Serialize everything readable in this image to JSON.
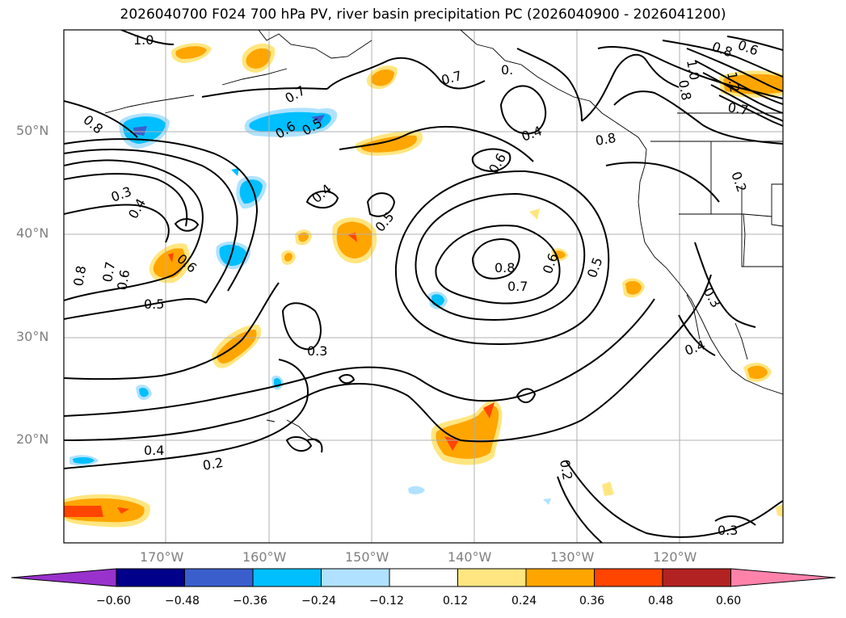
{
  "title": "2026040700 F024 700 hPa PV, river basin precipitation PC (2026040900 - 2026041200)",
  "lat_labels": [
    "50°N",
    "40°N",
    "30°N",
    "20°N"
  ],
  "lon_labels": [
    "170°W",
    "160°W",
    "150°W",
    "140°W",
    "130°W",
    "120°W"
  ],
  "colorbar": {
    "ticks": [
      "−0.60",
      "−0.48",
      "−0.36",
      "−0.24",
      "−0.12",
      "0.12",
      "0.24",
      "0.36",
      "0.48",
      "0.60"
    ],
    "colors": [
      "#9932cc",
      "#00008b",
      "#3a5fcd",
      "#00bfff",
      "#b0e2ff",
      "#ffffff",
      "#ffe680",
      "#ffa500",
      "#ff4500",
      "#b22222",
      "#ff82ab"
    ]
  },
  "contour_labels": [
    "1.0",
    "0.8",
    "0.7",
    "0.6",
    "0.5",
    "0.4",
    "0.3",
    "0.2",
    "1.2"
  ],
  "shading_colors": {
    "pos_light": "#ffe680",
    "pos_mid": "#ffa500",
    "pos_high": "#ff4500",
    "neg_light": "#b0e2ff",
    "neg_mid": "#00bfff",
    "neg_high": "#3a5fcd"
  }
}
